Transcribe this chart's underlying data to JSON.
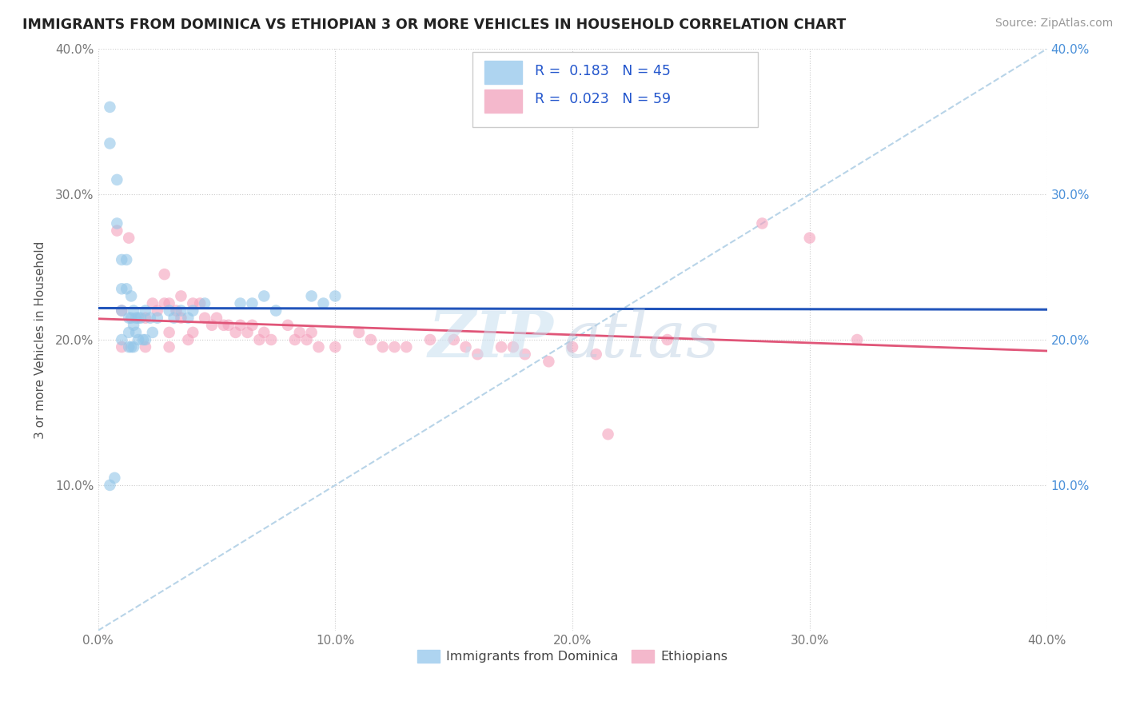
{
  "title": "IMMIGRANTS FROM DOMINICA VS ETHIOPIAN 3 OR MORE VEHICLES IN HOUSEHOLD CORRELATION CHART",
  "source_text": "Source: ZipAtlas.com",
  "ylabel": "3 or more Vehicles in Household",
  "xlim": [
    0.0,
    0.4
  ],
  "ylim": [
    0.0,
    0.4
  ],
  "xtick_vals": [
    0.0,
    0.1,
    0.2,
    0.3,
    0.4
  ],
  "ytick_vals": [
    0.1,
    0.2,
    0.3,
    0.4
  ],
  "bottom_legend": [
    "Immigrants from Dominica",
    "Ethiopians"
  ],
  "dominica_color": "#92c5e8",
  "ethiopian_color": "#f4a0bc",
  "dominica_line_color": "#2255bb",
  "ethiopian_line_color": "#e05578",
  "diagonal_line_color": "#b8d4e8",
  "watermark_zip": "ZIP",
  "watermark_atlas": "atlas",
  "R_dominica": 0.183,
  "N_dominica": 45,
  "R_ethiopian": 0.023,
  "N_ethiopian": 59,
  "dominica_x": [
    0.005,
    0.005,
    0.008,
    0.008,
    0.01,
    0.01,
    0.01,
    0.01,
    0.012,
    0.012,
    0.013,
    0.013,
    0.013,
    0.014,
    0.014,
    0.014,
    0.015,
    0.015,
    0.015,
    0.016,
    0.016,
    0.017,
    0.017,
    0.018,
    0.019,
    0.02,
    0.02,
    0.022,
    0.023,
    0.025,
    0.03,
    0.032,
    0.035,
    0.038,
    0.04,
    0.045,
    0.06,
    0.065,
    0.07,
    0.075,
    0.09,
    0.095,
    0.1,
    0.005,
    0.007
  ],
  "dominica_y": [
    0.36,
    0.335,
    0.31,
    0.28,
    0.255,
    0.235,
    0.22,
    0.2,
    0.255,
    0.235,
    0.215,
    0.205,
    0.195,
    0.23,
    0.215,
    0.195,
    0.22,
    0.21,
    0.195,
    0.215,
    0.205,
    0.215,
    0.2,
    0.215,
    0.2,
    0.22,
    0.2,
    0.215,
    0.205,
    0.215,
    0.22,
    0.215,
    0.22,
    0.215,
    0.22,
    0.225,
    0.225,
    0.225,
    0.23,
    0.22,
    0.23,
    0.225,
    0.23,
    0.1,
    0.105
  ],
  "ethiopian_x": [
    0.008,
    0.01,
    0.01,
    0.013,
    0.02,
    0.02,
    0.023,
    0.025,
    0.028,
    0.028,
    0.03,
    0.03,
    0.03,
    0.033,
    0.035,
    0.035,
    0.038,
    0.04,
    0.04,
    0.043,
    0.045,
    0.048,
    0.05,
    0.053,
    0.055,
    0.058,
    0.06,
    0.063,
    0.065,
    0.068,
    0.07,
    0.073,
    0.08,
    0.083,
    0.085,
    0.088,
    0.09,
    0.093,
    0.1,
    0.11,
    0.115,
    0.12,
    0.125,
    0.13,
    0.14,
    0.15,
    0.155,
    0.16,
    0.17,
    0.175,
    0.18,
    0.19,
    0.2,
    0.21,
    0.215,
    0.24,
    0.28,
    0.3,
    0.32
  ],
  "ethiopian_y": [
    0.275,
    0.22,
    0.195,
    0.27,
    0.215,
    0.195,
    0.225,
    0.22,
    0.245,
    0.225,
    0.225,
    0.205,
    0.195,
    0.22,
    0.23,
    0.215,
    0.2,
    0.225,
    0.205,
    0.225,
    0.215,
    0.21,
    0.215,
    0.21,
    0.21,
    0.205,
    0.21,
    0.205,
    0.21,
    0.2,
    0.205,
    0.2,
    0.21,
    0.2,
    0.205,
    0.2,
    0.205,
    0.195,
    0.195,
    0.205,
    0.2,
    0.195,
    0.195,
    0.195,
    0.2,
    0.2,
    0.195,
    0.19,
    0.195,
    0.195,
    0.19,
    0.185,
    0.195,
    0.19,
    0.135,
    0.2,
    0.28,
    0.27,
    0.2
  ]
}
